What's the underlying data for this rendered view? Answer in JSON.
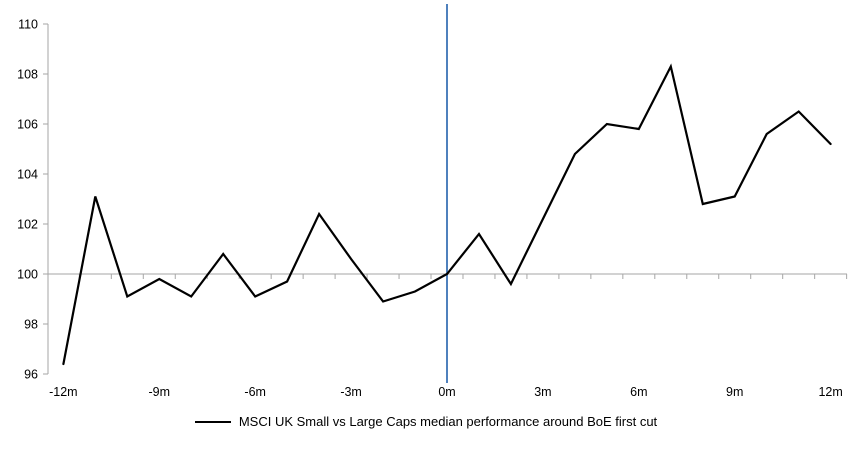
{
  "page": {
    "background": "#ffffff",
    "text_color": "#000000"
  },
  "chart_data": {
    "type": "line",
    "title": "",
    "xlabel": "",
    "ylabel": "",
    "x": [
      -12,
      -11,
      -10,
      -9,
      -8,
      -7,
      -6,
      -5,
      -4,
      -3,
      -2,
      -1,
      0,
      1,
      2,
      3,
      4,
      5,
      6,
      7,
      8,
      9,
      10,
      11,
      12
    ],
    "series": [
      {
        "name": "MSCI UK Small vs Large Caps median performance around BoE first cut",
        "color": "#000000",
        "values": [
          96.4,
          103.1,
          99.1,
          99.8,
          99.1,
          100.8,
          99.1,
          99.7,
          102.4,
          100.6,
          98.9,
          99.3,
          100.0,
          101.6,
          99.6,
          102.2,
          104.8,
          106.0,
          105.8,
          108.3,
          102.8,
          103.1,
          105.6,
          106.5,
          105.2
        ]
      }
    ],
    "x_tick_positions": [
      -12,
      -9,
      -6,
      -3,
      0,
      3,
      6,
      9,
      12
    ],
    "x_tick_labels": [
      "-12m",
      "-9m",
      "-6m",
      "-3m",
      "0m",
      "3m",
      "6m",
      "9m",
      "12m"
    ],
    "y_ticks": [
      96,
      98,
      100,
      102,
      104,
      106,
      108,
      110
    ],
    "ylim": [
      96,
      110
    ],
    "xlim": [
      -12.5,
      12.5
    ],
    "baseline_value": 100,
    "event_line": {
      "x": 0,
      "color": "#4f81bd"
    },
    "axis_color": "#a6a6a6",
    "grid": false,
    "legend_position": "bottom"
  }
}
